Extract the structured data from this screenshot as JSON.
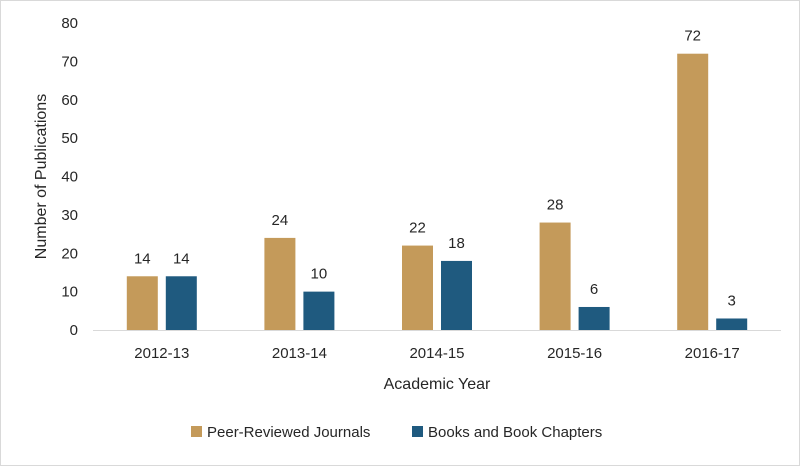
{
  "chart_data": {
    "type": "bar",
    "xlabel": "Academic Year",
    "ylabel": "Number of Publications",
    "ylim": [
      0,
      80
    ],
    "yticks": [
      0,
      10,
      20,
      30,
      40,
      50,
      60,
      70,
      80
    ],
    "categories": [
      "2012-13",
      "2013-14",
      "2014-15",
      "2015-16",
      "2016-17"
    ],
    "series": [
      {
        "name": "Peer-Reviewed Journals",
        "color": "#c49a5a",
        "values": [
          14,
          24,
          22,
          28,
          72
        ]
      },
      {
        "name": "Books and Book Chapters",
        "color": "#1f5a7f",
        "values": [
          14,
          10,
          18,
          6,
          3
        ]
      }
    ],
    "grid": false,
    "legend_position": "bottom"
  }
}
